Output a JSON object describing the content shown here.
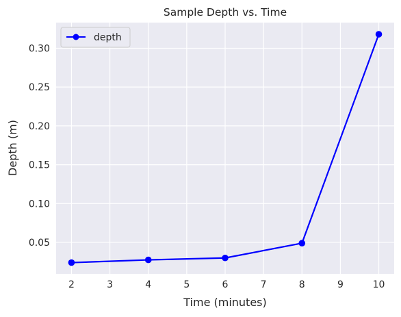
{
  "chart_data": {
    "type": "line",
    "title": "Sample Depth vs. Time",
    "xlabel": "Time (minutes)",
    "ylabel": "Depth (m)",
    "x": [
      2,
      4,
      6,
      8,
      10
    ],
    "series": [
      {
        "name": "depth",
        "values": [
          0.024,
          0.0275,
          0.03,
          0.049,
          0.318
        ],
        "color": "#0000ff"
      }
    ],
    "xlim": [
      1.6,
      10.4
    ],
    "ylim": [
      0.0095,
      0.333
    ],
    "xticks": [
      2,
      3,
      4,
      5,
      6,
      7,
      8,
      9,
      10
    ],
    "yticks": [
      0.05,
      0.1,
      0.15,
      0.2,
      0.25,
      0.3
    ],
    "ytick_labels": [
      "0.05",
      "0.10",
      "0.15",
      "0.20",
      "0.25",
      "0.30"
    ],
    "grid": true,
    "legend": "top-left",
    "background": "#eaeaf2"
  }
}
